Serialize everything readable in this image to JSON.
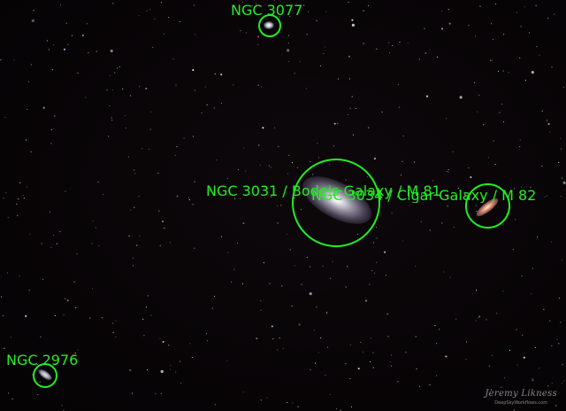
{
  "labels": {
    "ngc3077": "NGC 3077",
    "ngc3031": "NGC 3031 / Bode's Galaxy / M 81",
    "ngc3034": "NGC 3034 / Cigar Galaxy / M 82",
    "ngc2976": "NGC 2976"
  },
  "watermark": {
    "signature": "Jeremy Likness",
    "site": "DeepSkyWorkflows.com"
  },
  "colors": {
    "annotation": "#22ee22",
    "sky": "#070406"
  }
}
